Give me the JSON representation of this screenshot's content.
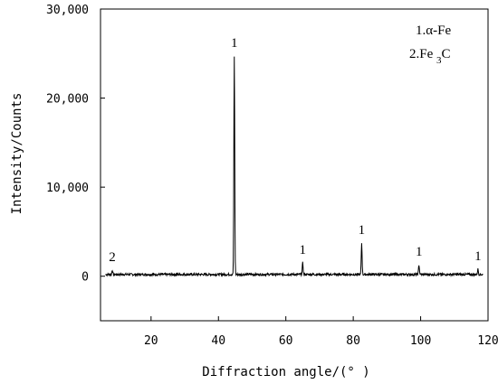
{
  "chart_data": {
    "type": "line",
    "title": "",
    "xlabel": "Diffraction angle/(° )",
    "ylabel": "Intensity/Counts",
    "xlim": [
      5,
      120
    ],
    "ylim": [
      -5000,
      30000
    ],
    "x_ticks": [
      20,
      40,
      60,
      80,
      100,
      120
    ],
    "x_tick_labels": [
      "20",
      "40",
      "60",
      "80",
      "100",
      "120"
    ],
    "y_ticks": [
      0,
      10000,
      20000,
      30000
    ],
    "y_tick_labels": [
      "0",
      "10,000",
      "20,000",
      "30,000"
    ],
    "grid": false,
    "legend": {
      "placement": "top-right",
      "entries": [
        "1.α-Fe",
        "2.Fe3C"
      ]
    },
    "peaks": [
      {
        "x": 8.5,
        "y": 700,
        "label": "2"
      },
      {
        "x": 44.7,
        "y": 24700,
        "label": "1"
      },
      {
        "x": 65.0,
        "y": 1500,
        "label": "1"
      },
      {
        "x": 82.5,
        "y": 3700,
        "label": "1"
      },
      {
        "x": 99.5,
        "y": 1300,
        "label": "1"
      },
      {
        "x": 117.0,
        "y": 800,
        "label": "1"
      }
    ],
    "baseline": 200
  }
}
